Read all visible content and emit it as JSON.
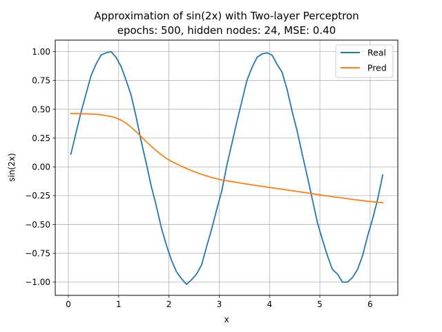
{
  "chart_data": {
    "type": "line",
    "title": "Approximation of sin(2x) with Two-layer Perceptron",
    "subtitle": "epochs: 500, hidden nodes: 24, MSE: 0.40",
    "xlabel": "x",
    "ylabel": "sin(2x)",
    "xlim": [
      -0.26,
      6.55
    ],
    "ylim": [
      -1.115,
      1.1
    ],
    "grid": true,
    "legend_position": "top-right",
    "x_ticks": [
      {
        "value": 0,
        "label": "0"
      },
      {
        "value": 1,
        "label": "1"
      },
      {
        "value": 2,
        "label": "2"
      },
      {
        "value": 3,
        "label": "3"
      },
      {
        "value": 4,
        "label": "4"
      },
      {
        "value": 5,
        "label": "5"
      },
      {
        "value": 6,
        "label": "6"
      }
    ],
    "y_ticks": [
      {
        "value": -1.0,
        "label": "−1.00"
      },
      {
        "value": -0.75,
        "label": "−0.75"
      },
      {
        "value": -0.5,
        "label": "−0.50"
      },
      {
        "value": -0.25,
        "label": "−0.25"
      },
      {
        "value": 0.0,
        "label": "0.00"
      },
      {
        "value": 0.25,
        "label": "0.25"
      },
      {
        "value": 0.5,
        "label": "0.50"
      },
      {
        "value": 0.75,
        "label": "0.75"
      },
      {
        "value": 1.0,
        "label": "1.00"
      }
    ],
    "series": [
      {
        "name": "Real",
        "color": "#1f77b4",
        "x": [
          0.05,
          0.15,
          0.25,
          0.35,
          0.45,
          0.55,
          0.65,
          0.75,
          0.85,
          0.95,
          1.05,
          1.15,
          1.25,
          1.35,
          1.45,
          1.55,
          1.65,
          1.75,
          1.85,
          1.95,
          2.05,
          2.15,
          2.25,
          2.35,
          2.45,
          2.55,
          2.65,
          2.75,
          2.85,
          2.95,
          3.05,
          3.15,
          3.25,
          3.35,
          3.45,
          3.55,
          3.65,
          3.75,
          3.85,
          3.95,
          4.05,
          4.15,
          4.25,
          4.35,
          4.45,
          4.55,
          4.65,
          4.75,
          4.85,
          4.95,
          5.05,
          5.15,
          5.25,
          5.35,
          5.45,
          5.55,
          5.65,
          5.75,
          5.85,
          5.95,
          6.05,
          6.15,
          6.25
        ],
        "y": [
          0.11,
          0.29,
          0.47,
          0.63,
          0.79,
          0.89,
          0.97,
          0.99,
          1.0,
          0.95,
          0.87,
          0.75,
          0.62,
          0.43,
          0.22,
          0.03,
          -0.17,
          -0.34,
          -0.53,
          -0.68,
          -0.81,
          -0.91,
          -0.97,
          -1.02,
          -0.98,
          -0.93,
          -0.85,
          -0.69,
          -0.54,
          -0.37,
          -0.21,
          0.01,
          0.2,
          0.39,
          0.57,
          0.75,
          0.86,
          0.95,
          0.98,
          0.99,
          0.97,
          0.89,
          0.82,
          0.67,
          0.48,
          0.31,
          0.11,
          -0.08,
          -0.28,
          -0.48,
          -0.63,
          -0.77,
          -0.89,
          -0.93,
          -1.0,
          -1.0,
          -0.96,
          -0.89,
          -0.77,
          -0.6,
          -0.45,
          -0.28,
          -0.07
        ]
      },
      {
        "name": "Pred",
        "color": "#ff7f0e",
        "x": [
          0.05,
          0.25,
          0.45,
          0.65,
          0.85,
          0.95,
          1.05,
          1.15,
          1.25,
          1.35,
          1.45,
          1.55,
          1.65,
          1.75,
          1.85,
          1.95,
          2.05,
          2.25,
          2.45,
          2.65,
          2.85,
          3.05,
          3.25,
          3.45,
          3.65,
          3.85,
          4.05,
          4.25,
          4.45,
          4.65,
          4.85,
          5.05,
          5.25,
          5.45,
          5.65,
          5.85,
          6.05,
          6.25
        ],
        "y": [
          0.463,
          0.462,
          0.459,
          0.452,
          0.437,
          0.425,
          0.405,
          0.378,
          0.344,
          0.305,
          0.262,
          0.219,
          0.178,
          0.14,
          0.105,
          0.073,
          0.047,
          0.005,
          -0.033,
          -0.065,
          -0.092,
          -0.113,
          -0.128,
          -0.142,
          -0.156,
          -0.169,
          -0.182,
          -0.194,
          -0.207,
          -0.22,
          -0.233,
          -0.246,
          -0.259,
          -0.27,
          -0.282,
          -0.293,
          -0.303,
          -0.311
        ]
      }
    ]
  }
}
